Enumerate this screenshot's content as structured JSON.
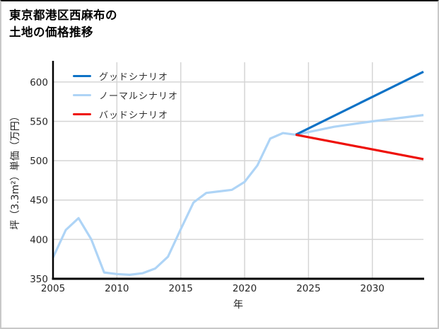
{
  "title_lines": [
    "東京都港区西麻布の",
    "土地の価格推移"
  ],
  "chart_data": {
    "type": "line",
    "title": "東京都港区西麻布の土地の価格推移",
    "xlabel": "年",
    "ylabel": "坪（3.3m²）単価（万円）",
    "xlim": [
      2005,
      2034
    ],
    "ylim": [
      350,
      625
    ],
    "xticks": [
      2005,
      2010,
      2015,
      2020,
      2025,
      2030
    ],
    "yticks": [
      350,
      400,
      450,
      500,
      550,
      600
    ],
    "grid": true,
    "legend": {
      "position": "upper-left",
      "entries": [
        {
          "label": "グッドシナリオ",
          "color": "#0e72c6"
        },
        {
          "label": "ノーマルシナリオ",
          "color": "#aed4f6"
        },
        {
          "label": "バッドシナリオ",
          "color": "#ee1009"
        }
      ]
    },
    "series": [
      {
        "name": "ノーマルシナリオ",
        "color": "#aed4f6",
        "x": [
          2005,
          2006,
          2007,
          2008,
          2009,
          2010,
          2011,
          2012,
          2013,
          2014,
          2015,
          2016,
          2017,
          2018,
          2019,
          2020,
          2021,
          2022,
          2023,
          2024,
          2027,
          2030,
          2034
        ],
        "y": [
          377,
          412,
          427,
          400,
          358,
          356,
          355,
          357,
          363,
          378,
          413,
          447,
          459,
          461,
          463,
          473,
          494,
          528,
          535,
          533,
          543,
          550,
          558
        ]
      },
      {
        "name": "グッドシナリオ",
        "color": "#0e72c6",
        "x": [
          2024,
          2034
        ],
        "y": [
          533,
          613
        ]
      },
      {
        "name": "バッドシナリオ",
        "color": "#ee1009",
        "x": [
          2024,
          2034
        ],
        "y": [
          533,
          502
        ]
      }
    ]
  }
}
